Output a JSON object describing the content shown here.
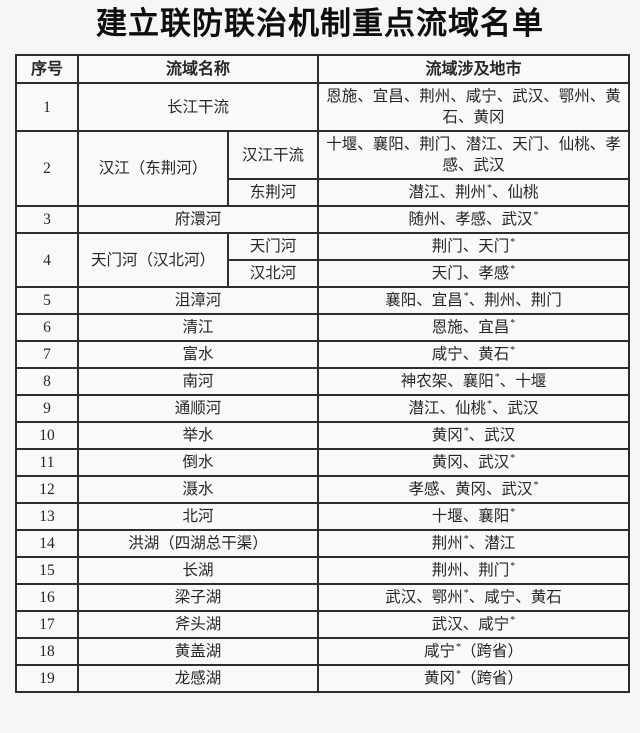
{
  "title": "建立联防联治机制重点流域名单",
  "colors": {
    "border": "#2d2d2d",
    "text": "#262626",
    "background": "#f6f6f4"
  },
  "table": {
    "headers": {
      "no": "序号",
      "name": "流域名称",
      "cities": "流域涉及地市"
    },
    "footnote_marker": "*",
    "rows": [
      {
        "no": "1",
        "name": "长江干流",
        "cities": "恩施、宜昌、荆州、咸宁、武汉、鄂州、黄石、黄冈"
      },
      {
        "no": "2",
        "name": "汉江（东荆河）",
        "subs": [
          {
            "name": "汉江干流",
            "cities": "十堰、襄阳、荆门、潜江、天门、仙桃、孝感、武汉"
          },
          {
            "name": "东荆河",
            "cities": "潜江、荆州*、仙桃"
          }
        ]
      },
      {
        "no": "3",
        "name": "府澴河",
        "cities": "随州、孝感、武汉*"
      },
      {
        "no": "4",
        "name": "天门河（汉北河）",
        "subs": [
          {
            "name": "天门河",
            "cities": "荆门、天门*"
          },
          {
            "name": "汉北河",
            "cities": "天门、孝感*"
          }
        ]
      },
      {
        "no": "5",
        "name": "沮漳河",
        "cities": "襄阳、宜昌*、荆州、荆门"
      },
      {
        "no": "6",
        "name": "清江",
        "cities": "恩施、宜昌*"
      },
      {
        "no": "7",
        "name": "富水",
        "cities": "咸宁、黄石*"
      },
      {
        "no": "8",
        "name": "南河",
        "cities": "神农架、襄阳*、十堰"
      },
      {
        "no": "9",
        "name": "通顺河",
        "cities": "潜江、仙桃*、武汉"
      },
      {
        "no": "10",
        "name": "举水",
        "cities": "黄冈*、武汉"
      },
      {
        "no": "11",
        "name": "倒水",
        "cities": "黄冈、武汉*"
      },
      {
        "no": "12",
        "name": "滠水",
        "cities": "孝感、黄冈、武汉*"
      },
      {
        "no": "13",
        "name": "北河",
        "cities": "十堰、襄阳*"
      },
      {
        "no": "14",
        "name": "洪湖（四湖总干渠）",
        "cities": "荆州*、潜江"
      },
      {
        "no": "15",
        "name": "长湖",
        "cities": "荆州、荆门*"
      },
      {
        "no": "16",
        "name": "梁子湖",
        "cities": "武汉、鄂州*、咸宁、黄石"
      },
      {
        "no": "17",
        "name": "斧头湖",
        "cities": "武汉、咸宁*"
      },
      {
        "no": "18",
        "name": "黄盖湖",
        "cities": "咸宁*（跨省）"
      },
      {
        "no": "19",
        "name": "龙感湖",
        "cities": "黄冈*（跨省）"
      }
    ]
  }
}
